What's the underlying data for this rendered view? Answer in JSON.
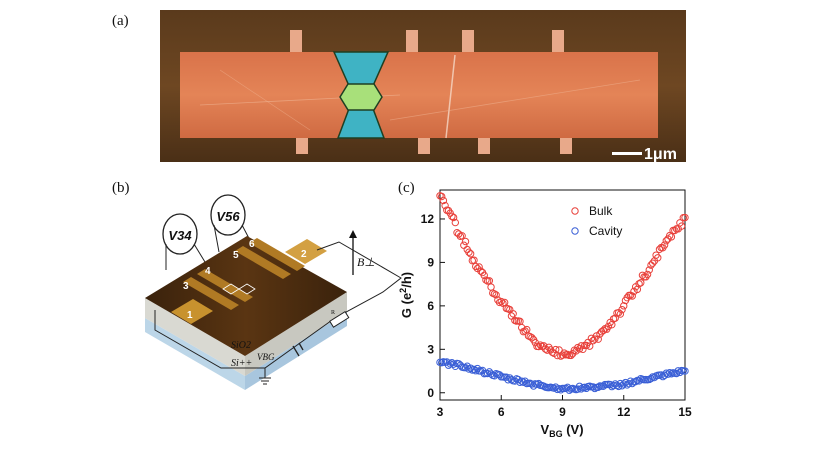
{
  "figure": {
    "panel_a": {
      "label": "(a)",
      "scale_bar_label": "1μm"
    },
    "panel_b": {
      "label": "(b)",
      "voltmeter_left": "V34",
      "voltmeter_right": "V56",
      "field_label": "B⊥",
      "resistor_label": "R",
      "substrate_top": "SiO2",
      "substrate_bottom": "Si++",
      "gate_label": "VBG",
      "contact_labels": [
        "1",
        "2",
        "3",
        "4",
        "5",
        "6"
      ]
    },
    "panel_c": {
      "label": "(c)"
    }
  },
  "chart_data": {
    "type": "scatter",
    "title": "",
    "xlabel": "V_BG (V)",
    "ylabel": "G (e^2/h)",
    "xlim": [
      3,
      15
    ],
    "ylim": [
      -0.5,
      14
    ],
    "xticks": [
      3,
      6,
      9,
      12,
      15
    ],
    "yticks": [
      0,
      3,
      6,
      9,
      12
    ],
    "legend_position": "top-right",
    "series": [
      {
        "name": "Bulk",
        "color": "#e8403a",
        "marker": "open-circle",
        "x": [
          3.0,
          3.5,
          4.0,
          4.5,
          5.0,
          5.5,
          6.0,
          6.5,
          7.0,
          7.5,
          8.0,
          8.5,
          9.0,
          9.5,
          10.0,
          10.5,
          11.0,
          11.5,
          12.0,
          12.5,
          13.0,
          13.5,
          14.0,
          14.5,
          15.0
        ],
        "values": [
          13.6,
          12.4,
          10.8,
          9.6,
          8.4,
          7.3,
          6.3,
          5.3,
          4.5,
          3.8,
          3.2,
          2.8,
          2.6,
          2.7,
          3.0,
          3.6,
          4.3,
          5.1,
          6.0,
          7.0,
          8.0,
          9.1,
          10.2,
          11.2,
          12.1
        ]
      },
      {
        "name": "Cavity",
        "color": "#3a5fd6",
        "marker": "open-circle",
        "x": [
          3.0,
          3.5,
          4.0,
          4.5,
          5.0,
          5.5,
          6.0,
          6.5,
          7.0,
          7.5,
          8.0,
          8.5,
          9.0,
          9.5,
          10.0,
          10.5,
          11.0,
          11.5,
          12.0,
          12.5,
          13.0,
          13.5,
          14.0,
          14.5,
          15.0
        ],
        "values": [
          2.1,
          2.0,
          1.9,
          1.7,
          1.5,
          1.3,
          1.1,
          0.9,
          0.8,
          0.6,
          0.5,
          0.35,
          0.3,
          0.3,
          0.35,
          0.4,
          0.45,
          0.5,
          0.6,
          0.75,
          0.9,
          1.05,
          1.2,
          1.35,
          1.5
        ]
      }
    ]
  }
}
